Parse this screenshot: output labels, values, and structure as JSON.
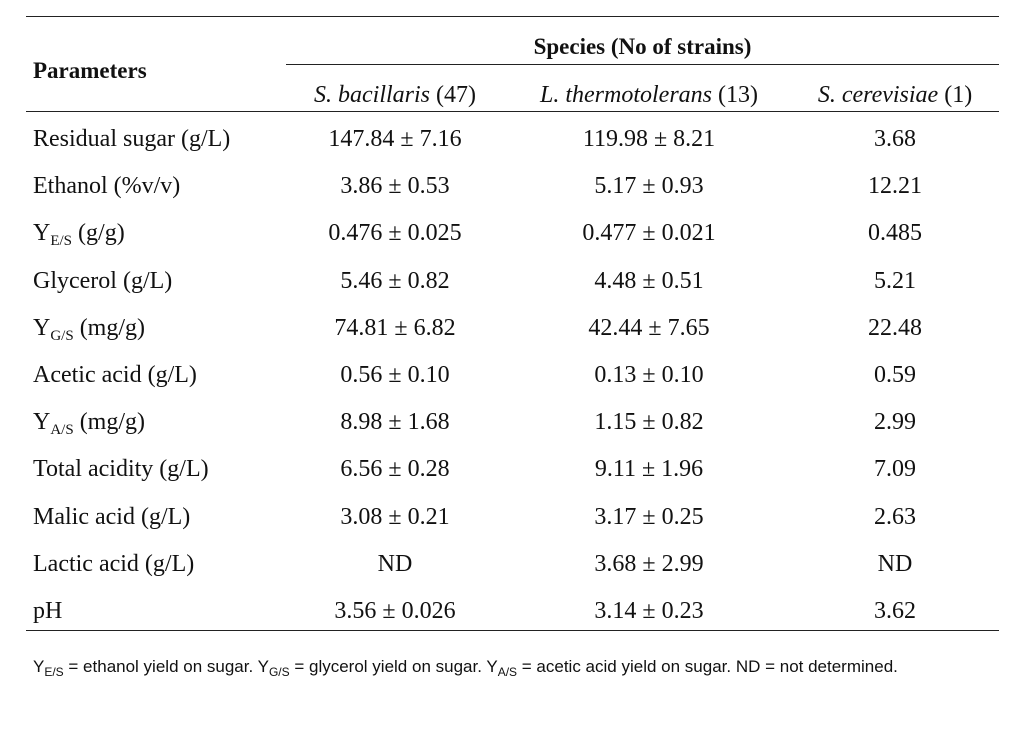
{
  "table": {
    "header": {
      "parameters": "Parameters",
      "species_group": "Species (No of strains)",
      "columns": [
        {
          "name": "S. bacillaris",
          "count": "(47)"
        },
        {
          "name": "L. thermotolerans",
          "count": "(13)"
        },
        {
          "name": "S. cerevisiae",
          "count": "(1)"
        }
      ]
    },
    "rows": [
      {
        "param": "Residual sugar (g/L)",
        "values": [
          "147.84 ± 7.16",
          "119.98 ± 8.21",
          "3.68"
        ]
      },
      {
        "param": "Ethanol (%v/v)",
        "values": [
          "3.86 ± 0.53",
          "5.17 ± 0.93",
          "12.21"
        ]
      },
      {
        "param_main": "Y",
        "param_sub": "E/S",
        "param_rest": " (g/g)",
        "values": [
          "0.476 ± 0.025",
          "0.477 ± 0.021",
          "0.485"
        ]
      },
      {
        "param": "Glycerol (g/L)",
        "values": [
          "5.46 ± 0.82",
          "4.48 ± 0.51",
          "5.21"
        ]
      },
      {
        "param_main": "Y",
        "param_sub": "G/S",
        "param_rest": " (mg/g)",
        "values": [
          "74.81 ± 6.82",
          "42.44 ± 7.65",
          "22.48"
        ]
      },
      {
        "param": "Acetic acid (g/L)",
        "values": [
          "0.56 ± 0.10",
          "0.13 ± 0.10",
          "0.59"
        ]
      },
      {
        "param_main": "Y",
        "param_sub": "A/S",
        "param_rest": " (mg/g)",
        "values": [
          "8.98 ± 1.68",
          "1.15 ± 0.82",
          "2.99"
        ]
      },
      {
        "param": "Total acidity (g/L)",
        "values": [
          "6.56 ± 0.28",
          "9.11 ± 1.96",
          "7.09"
        ]
      },
      {
        "param": "Malic acid (g/L)",
        "values": [
          "3.08 ± 0.21",
          "3.17 ± 0.25",
          "2.63"
        ]
      },
      {
        "param": "Lactic acid (g/L)",
        "values": [
          "ND",
          "3.68 ± 2.99",
          "ND"
        ]
      },
      {
        "param": "pH",
        "values": [
          "3.56 ± 0.026",
          "3.14 ± 0.23",
          "3.62"
        ]
      }
    ]
  },
  "footnote": {
    "y": "Y",
    "es_sub": "E/S",
    "es_text": " = ethanol yield on sugar. ",
    "gs_sub": "G/S",
    "gs_text": " = glycerol yield on sugar. ",
    "as_sub": "A/S",
    "as_text": " = acetic acid yield on sugar. ND = not determined."
  }
}
